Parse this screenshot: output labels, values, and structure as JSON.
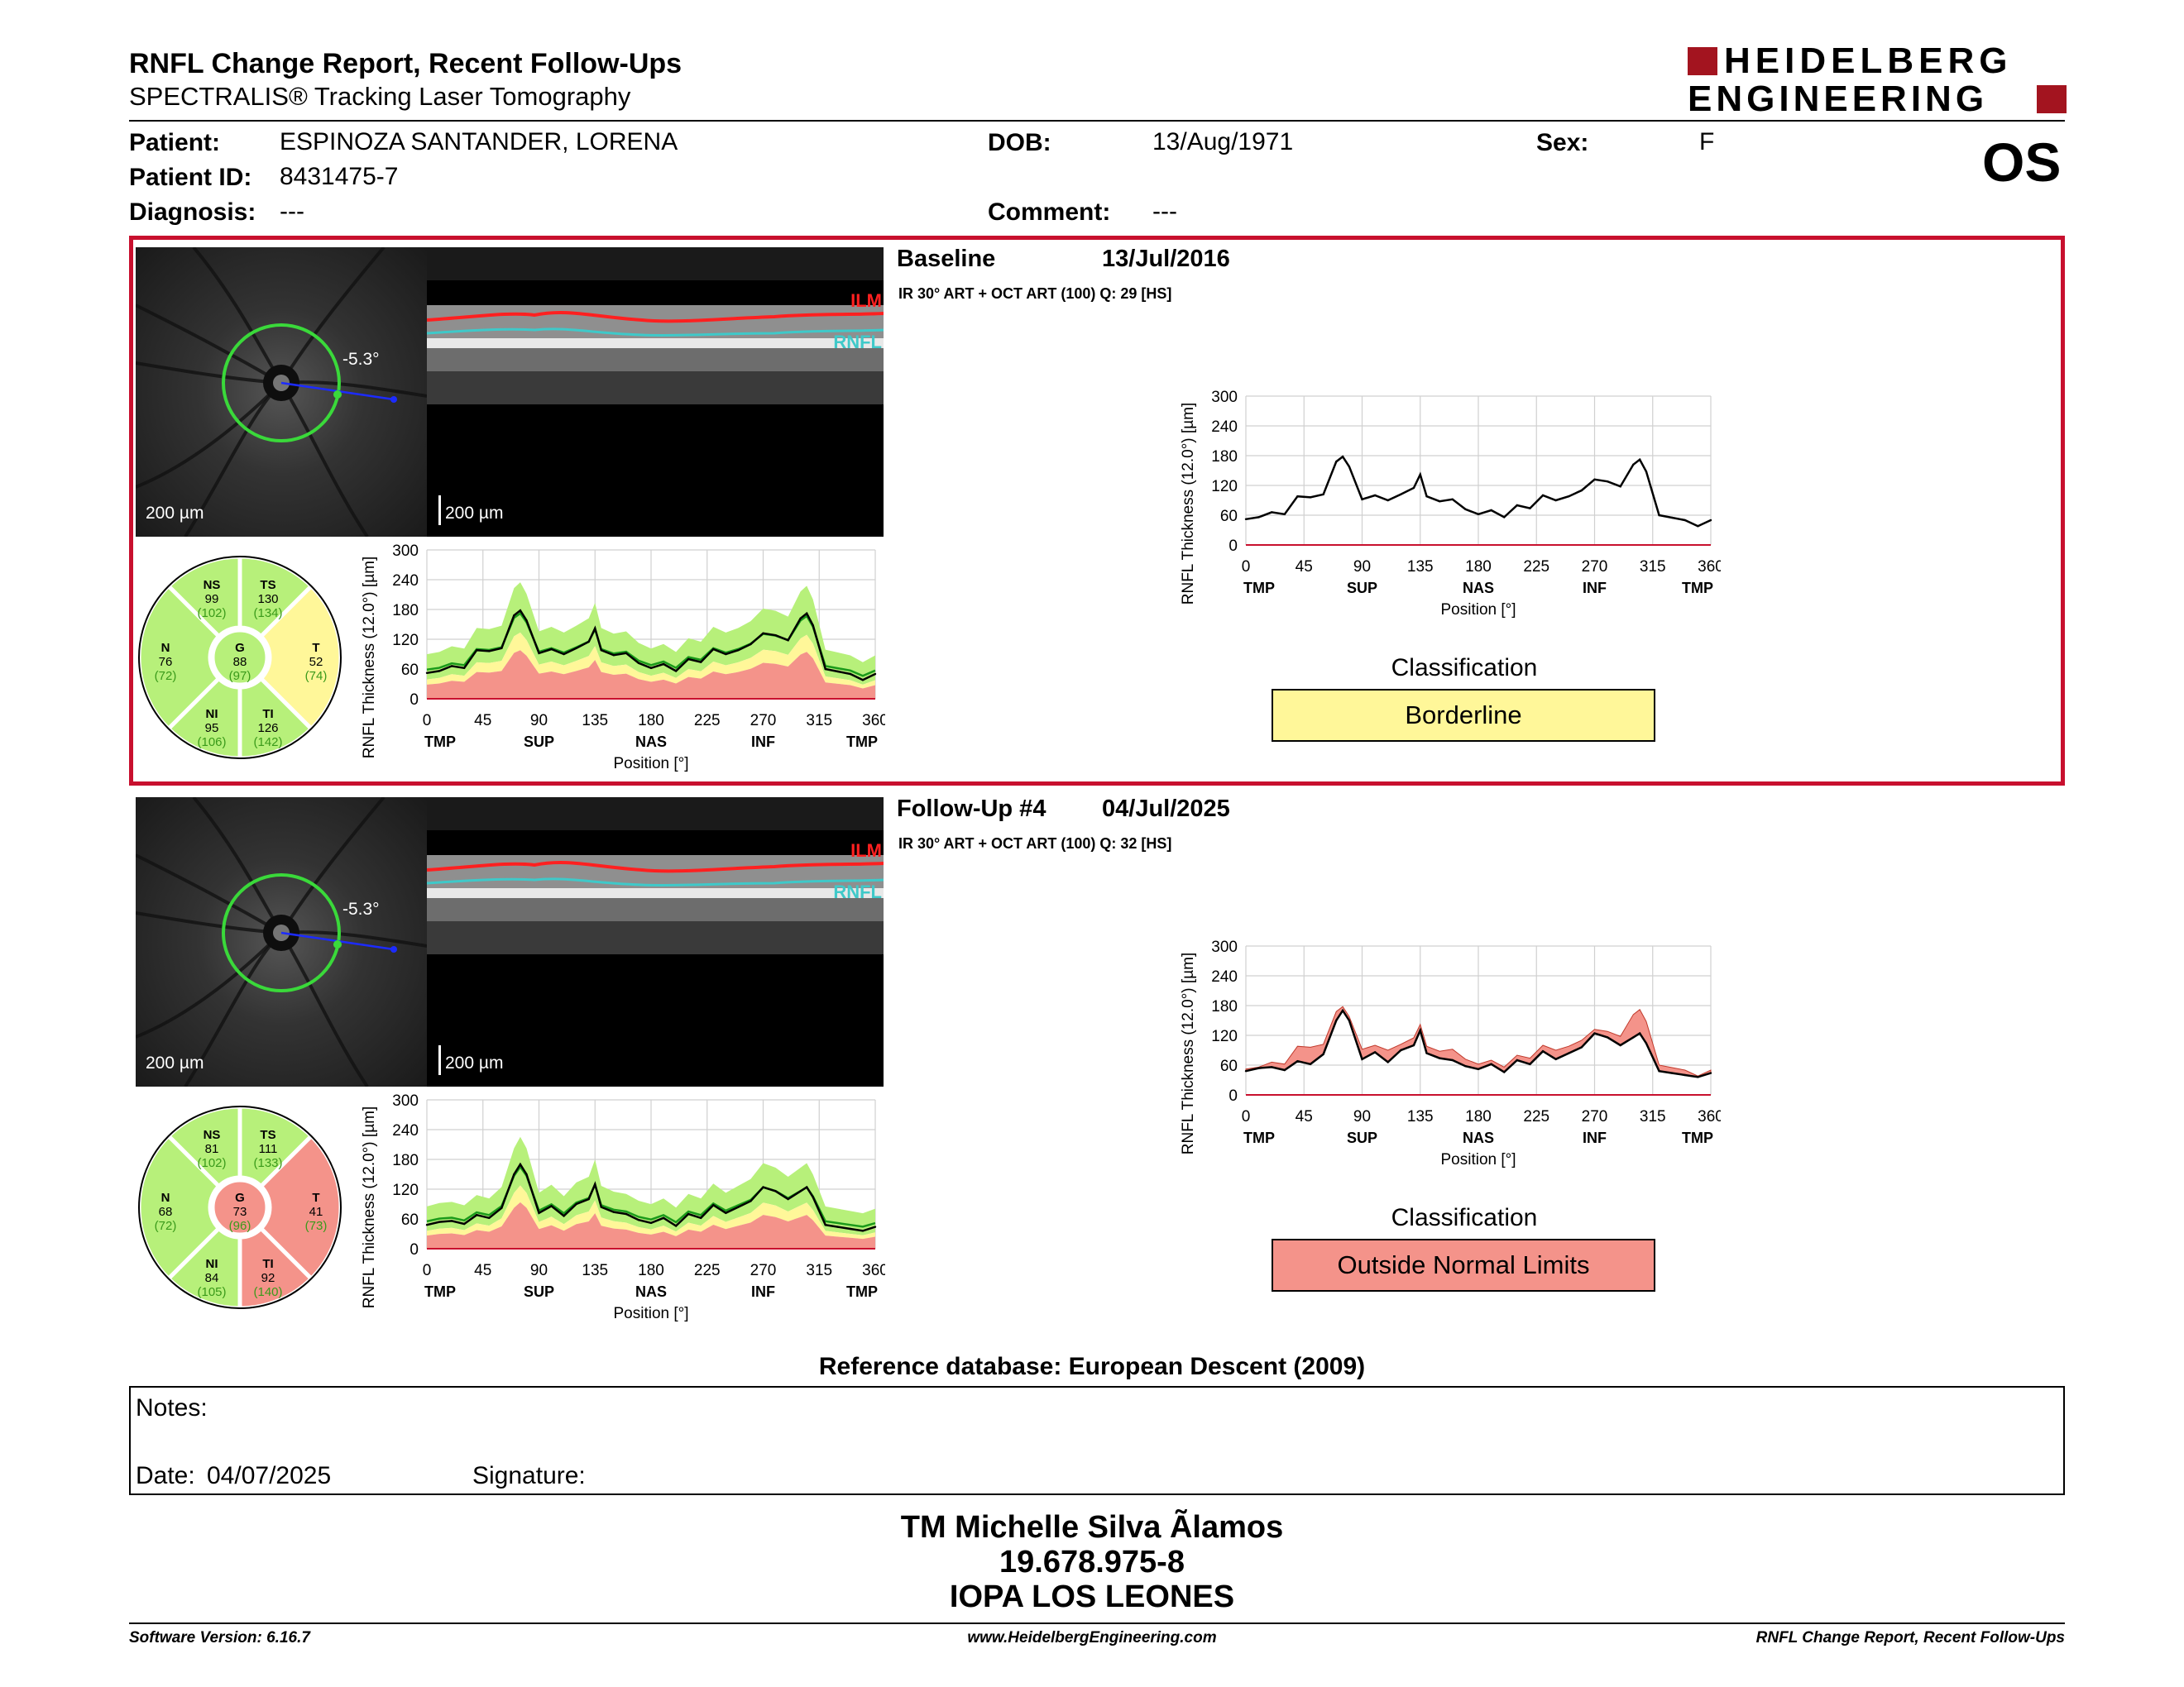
{
  "header": {
    "title": "RNFL Change Report, Recent Follow-Ups",
    "subtitle": "SPECTRALIS® Tracking Laser Tomography",
    "brand_line1": "HEIDELBERG",
    "brand_line2": "ENGINEERING",
    "eye": "OS"
  },
  "patient": {
    "patient_label": "Patient:",
    "patient_name": "ESPINOZA SANTANDER, LORENA",
    "dob_label": "DOB:",
    "dob": "13/Aug/1971",
    "sex_label": "Sex:",
    "sex": "F",
    "id_label": "Patient ID:",
    "id": "8431475-7",
    "diagnosis_label": "Diagnosis:",
    "diagnosis": "---",
    "comment_label": "Comment:",
    "comment": "---"
  },
  "colors": {
    "frame_red": "#c8102e",
    "normal_green": "#b7f07a",
    "borderline_yellow": "#fff799",
    "outside_red": "#f4938a",
    "ilm_red": "#ff2020",
    "rnfl_cyan": "#3fc9c9"
  },
  "exams": [
    {
      "title": "Baseline",
      "date": "13/Jul/2016",
      "acq": "IR 30° ART + OCT ART (100) Q: 29 [HS]",
      "angle": "-5.3°",
      "scale_fundus": "200 µm",
      "scale_bscan": "200 µm",
      "ilm_label": "ILM",
      "rnfl_label": "RNFL",
      "classification_title": "Classification",
      "classification": "Borderline",
      "classification_color": "#fff799",
      "sectors": {
        "NS": {
          "label": "NS",
          "value": "99",
          "ref": "(102)",
          "color": "#b7f07a"
        },
        "TS": {
          "label": "TS",
          "value": "130",
          "ref": "(134)",
          "color": "#b7f07a"
        },
        "N": {
          "label": "N",
          "value": "76",
          "ref": "(72)",
          "color": "#b7f07a"
        },
        "G": {
          "label": "G",
          "value": "88",
          "ref": "(97)",
          "color": "#b7f07a"
        },
        "T": {
          "label": "T",
          "value": "52",
          "ref": "(74)",
          "color": "#fff799"
        },
        "NI": {
          "label": "NI",
          "value": "95",
          "ref": "(106)",
          "color": "#b7f07a"
        },
        "TI": {
          "label": "TI",
          "value": "126",
          "ref": "(142)",
          "color": "#b7f07a"
        }
      }
    },
    {
      "title": "Follow-Up #4",
      "date": "04/Jul/2025",
      "acq": "IR 30° ART + OCT ART (100) Q: 32 [HS]",
      "angle": "-5.3°",
      "scale_fundus": "200 µm",
      "scale_bscan": "200 µm",
      "ilm_label": "ILM",
      "rnfl_label": "RNFL",
      "classification_title": "Classification",
      "classification": "Outside Normal Limits",
      "classification_color": "#f4938a",
      "sectors": {
        "NS": {
          "label": "NS",
          "value": "81",
          "ref": "(102)",
          "color": "#b7f07a"
        },
        "TS": {
          "label": "TS",
          "value": "111",
          "ref": "(133)",
          "color": "#b7f07a"
        },
        "N": {
          "label": "N",
          "value": "68",
          "ref": "(72)",
          "color": "#b7f07a"
        },
        "G": {
          "label": "G",
          "value": "73",
          "ref": "(96)",
          "color": "#f4938a"
        },
        "T": {
          "label": "T",
          "value": "41",
          "ref": "(73)",
          "color": "#f4938a"
        },
        "NI": {
          "label": "NI",
          "value": "84",
          "ref": "(105)",
          "color": "#b7f07a"
        },
        "TI": {
          "label": "TI",
          "value": "92",
          "ref": "(140)",
          "color": "#f4938a"
        }
      }
    }
  ],
  "chart_data": [
    {
      "type": "line",
      "title": "",
      "xlabel": "Position [°]",
      "ylabel": "RNFL Thickness (12.0°) [µm]",
      "xlim": [
        0,
        360
      ],
      "ylim": [
        0,
        300
      ],
      "x_ticks": [
        "0",
        "45",
        "90",
        "135",
        "180",
        "225",
        "270",
        "315",
        "360"
      ],
      "y_ticks": [
        "0",
        "60",
        "120",
        "180",
        "240",
        "300"
      ],
      "sector_labels": [
        "TMP",
        "SUP",
        "NAS",
        "INF",
        "TMP"
      ],
      "grid": true,
      "x": [
        0,
        10,
        20,
        30,
        40,
        50,
        60,
        70,
        75,
        80,
        90,
        100,
        110,
        120,
        130,
        135,
        140,
        150,
        160,
        170,
        180,
        190,
        200,
        210,
        220,
        230,
        240,
        250,
        260,
        270,
        280,
        290,
        300,
        305,
        310,
        320,
        330,
        340,
        350,
        360
      ],
      "series": [
        {
          "name": "",
          "values": [
            52,
            56,
            66,
            62,
            98,
            96,
            102,
            168,
            178,
            158,
            92,
            100,
            90,
            102,
            115,
            142,
            98,
            88,
            92,
            72,
            62,
            70,
            56,
            80,
            74,
            100,
            90,
            98,
            110,
            132,
            128,
            118,
            162,
            172,
            148,
            60,
            55,
            50,
            38,
            50
          ]
        }
      ]
    },
    {
      "type": "line",
      "title": "",
      "xlabel": "Position [°]",
      "ylabel": "RNFL Thickness (12.0°) [µm]",
      "xlim": [
        0,
        360
      ],
      "ylim": [
        0,
        300
      ],
      "x_ticks": [
        "0",
        "45",
        "90",
        "135",
        "180",
        "225",
        "270",
        "315",
        "360"
      ],
      "y_ticks": [
        "0",
        "60",
        "120",
        "180",
        "240",
        "300"
      ],
      "sector_labels": [
        "TMP",
        "SUP",
        "NAS",
        "INF",
        "TMP"
      ],
      "grid": true,
      "x": [
        0,
        10,
        20,
        30,
        40,
        50,
        60,
        70,
        75,
        80,
        90,
        100,
        110,
        120,
        130,
        135,
        140,
        150,
        160,
        170,
        180,
        190,
        200,
        210,
        220,
        230,
        240,
        250,
        260,
        270,
        280,
        290,
        300,
        305,
        310,
        320,
        330,
        340,
        350,
        360
      ],
      "series": [
        {
          "name": "",
          "values": [
            48,
            54,
            56,
            50,
            68,
            62,
            82,
            150,
            170,
            150,
            72,
            86,
            66,
            90,
            100,
            130,
            84,
            74,
            70,
            58,
            52,
            62,
            46,
            70,
            62,
            88,
            72,
            84,
            96,
            124,
            116,
            100,
            116,
            124,
            104,
            48,
            44,
            40,
            36,
            44
          ]
        }
      ]
    }
  ],
  "reference_db": "Reference database: European Descent (2009)",
  "notes": {
    "notes_label": "Notes:",
    "date_label": "Date:",
    "date": "04/07/2025",
    "signature_label": "Signature:"
  },
  "signatory": {
    "name": "TM Michelle Silva Ãlamos",
    "id": "19.678.975-8",
    "institution": "IOPA LOS LEONES"
  },
  "footer": {
    "software": "Software Version: 6.16.7",
    "website": "www.HeidelbergEngineering.com",
    "report": "RNFL Change Report, Recent Follow-Ups"
  }
}
